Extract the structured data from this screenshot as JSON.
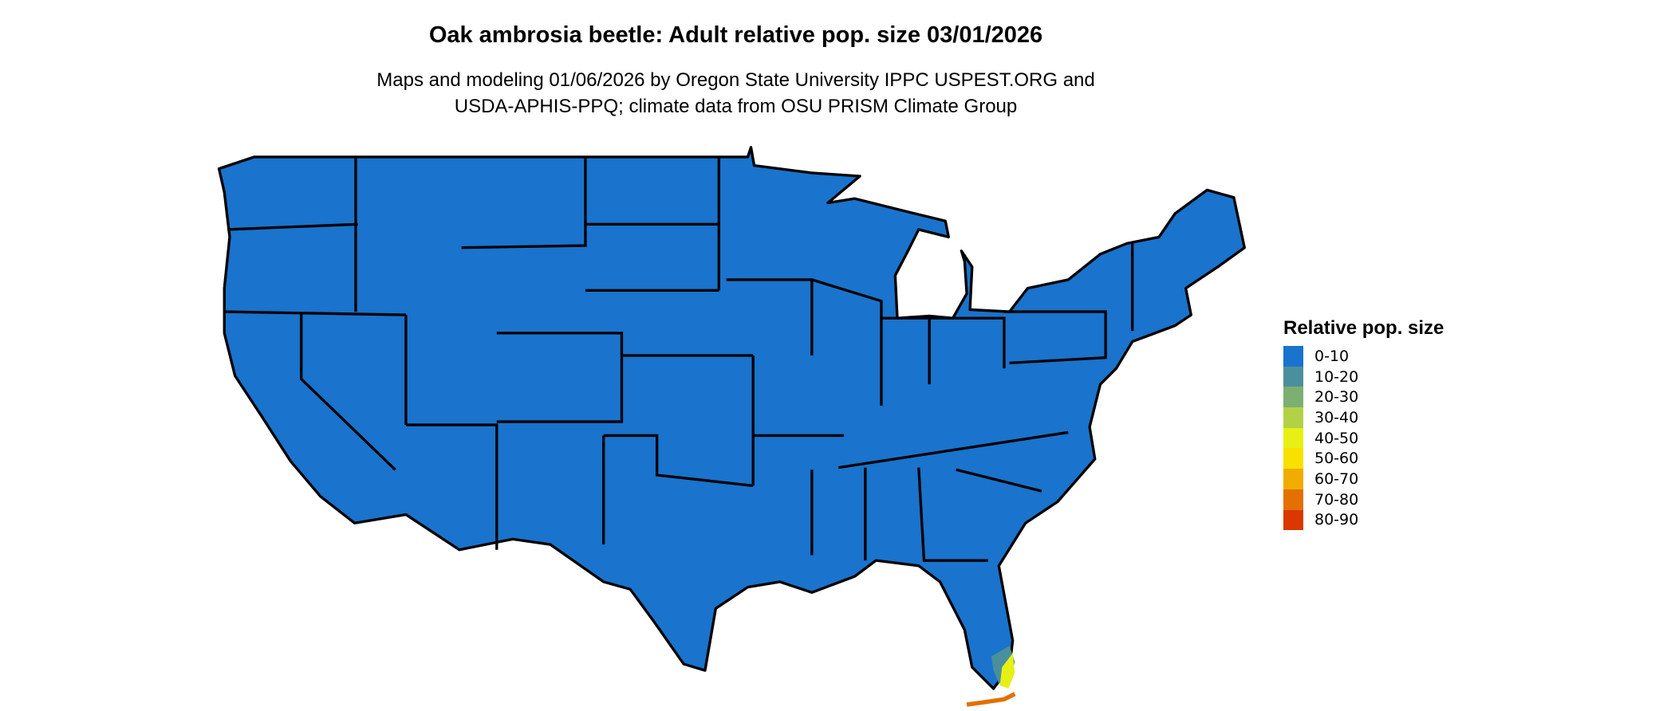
{
  "title": "Oak ambrosia beetle: Adult relative pop. size 03/01/2026",
  "subtitle_lines": [
    "Maps and modeling 01/06/2026 by Oregon State University IPPC USPEST.ORG and",
    "USDA-APHIS-PPQ; climate data from OSU PRISM Climate Group"
  ],
  "map": {
    "region": "Contiguous United States",
    "base_fill": "#1a73cc",
    "border_color": "#000000",
    "hotspot": "South Florida / Keys"
  },
  "legend": {
    "title": "Relative pop. size",
    "items": [
      {
        "label": "0-10",
        "color": "#1a73cc"
      },
      {
        "label": "10-20",
        "color": "#4a8f9c"
      },
      {
        "label": "20-30",
        "color": "#7daf72"
      },
      {
        "label": "30-40",
        "color": "#b3d147"
      },
      {
        "label": "40-50",
        "color": "#e6f015"
      },
      {
        "label": "50-60",
        "color": "#f8e000"
      },
      {
        "label": "60-70",
        "color": "#f0ac00"
      },
      {
        "label": "70-80",
        "color": "#e37000"
      },
      {
        "label": "80-90",
        "color": "#da3800"
      }
    ]
  }
}
